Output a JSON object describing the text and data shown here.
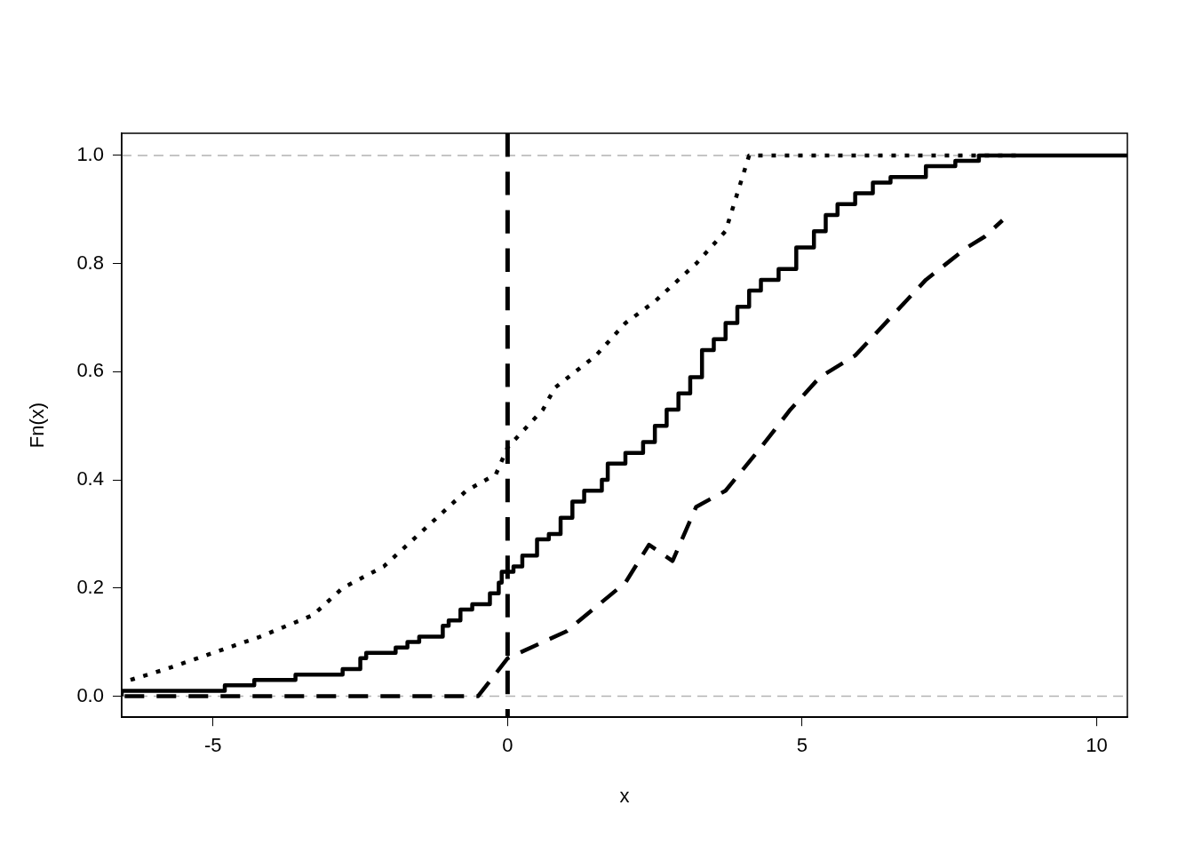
{
  "chart_data": {
    "type": "line",
    "xlabel": "x",
    "ylabel": "Fn(x)",
    "xlim": [
      -6.55,
      10.52
    ],
    "ylim": [
      -0.039,
      1.041
    ],
    "xticks": [
      -5,
      0,
      5,
      10
    ],
    "yticks": [
      {
        "value": 0,
        "label": "0.0"
      },
      0.2,
      0.4,
      0.6,
      0.8,
      {
        "value": 1,
        "label": "1.0"
      }
    ],
    "grid": false,
    "legend": false,
    "marker": "none",
    "ref_lines": [
      {
        "axis": "y",
        "value": 0,
        "color": "#b3b3b3",
        "line_style": "dashed"
      },
      {
        "axis": "y",
        "value": 1,
        "color": "#b3b3b3",
        "line_style": "dashed"
      },
      {
        "axis": "x",
        "value": 0,
        "color": "#000000",
        "line_style": "dashed"
      }
    ],
    "series": [
      {
        "type": "step",
        "color": "#000000",
        "line_style": "solid",
        "x": [
          -6.55,
          -4.8,
          -4.3,
          -3.6,
          -2.8,
          -2.5,
          -2.4,
          -1.9,
          -1.7,
          -1.5,
          -1.1,
          -1.0,
          -0.8,
          -0.6,
          -0.3,
          -0.15,
          -0.1,
          0.1,
          0.25,
          0.5,
          0.7,
          0.9,
          1.1,
          1.3,
          1.6,
          1.7,
          2.0,
          2.3,
          2.5,
          2.7,
          2.9,
          3.1,
          3.3,
          3.5,
          3.7,
          3.9,
          4.1,
          4.3,
          4.6,
          4.9,
          5.2,
          5.4,
          5.6,
          5.9,
          6.2,
          6.5,
          7.1,
          7.6,
          8.0,
          8.8,
          10.52
        ],
        "values": [
          0,
          0.01,
          0.02,
          0.03,
          0.04,
          0.05,
          0.07,
          0.08,
          0.09,
          0.1,
          0.11,
          0.13,
          0.14,
          0.16,
          0.17,
          0.19,
          0.21,
          0.23,
          0.24,
          0.26,
          0.29,
          0.3,
          0.33,
          0.36,
          0.38,
          0.4,
          0.43,
          0.45,
          0.47,
          0.5,
          0.53,
          0.56,
          0.59,
          0.64,
          0.66,
          0.69,
          0.72,
          0.75,
          0.77,
          0.79,
          0.83,
          0.86,
          0.89,
          0.91,
          0.93,
          0.95,
          0.96,
          0.98,
          0.99,
          1,
          1
        ]
      },
      {
        "type": "line",
        "color": "#000000",
        "line_style": "dotted",
        "x": [
          -6.4,
          -5.8,
          -5.0,
          -4.2,
          -3.3,
          -2.8,
          -2.1,
          -1.2,
          -0.7,
          -0.2,
          0,
          0.6,
          0.8,
          1.5,
          2.0,
          2.5,
          3.2,
          3.7,
          4.1,
          8.7
        ],
        "values": [
          0.03,
          0.05,
          0.08,
          0.11,
          0.15,
          0.2,
          0.24,
          0.33,
          0.38,
          0.41,
          0.46,
          0.53,
          0.57,
          0.63,
          0.69,
          0.73,
          0.8,
          0.86,
          1,
          1
        ]
      },
      {
        "type": "line",
        "color": "#000000",
        "line_style": "dashed",
        "x": [
          -6.5,
          -0.5,
          0,
          1,
          2,
          2.4,
          2.8,
          3.2,
          3.7,
          4.3,
          4.8,
          5.3,
          5.9,
          6.5,
          7.1,
          7.8,
          8.1,
          8.4
        ],
        "values": [
          0,
          0,
          0.07,
          0.12,
          0.21,
          0.28,
          0.25,
          0.35,
          0.38,
          0.46,
          0.53,
          0.59,
          0.63,
          0.7,
          0.77,
          0.83,
          0.85,
          0.88
        ]
      }
    ]
  }
}
